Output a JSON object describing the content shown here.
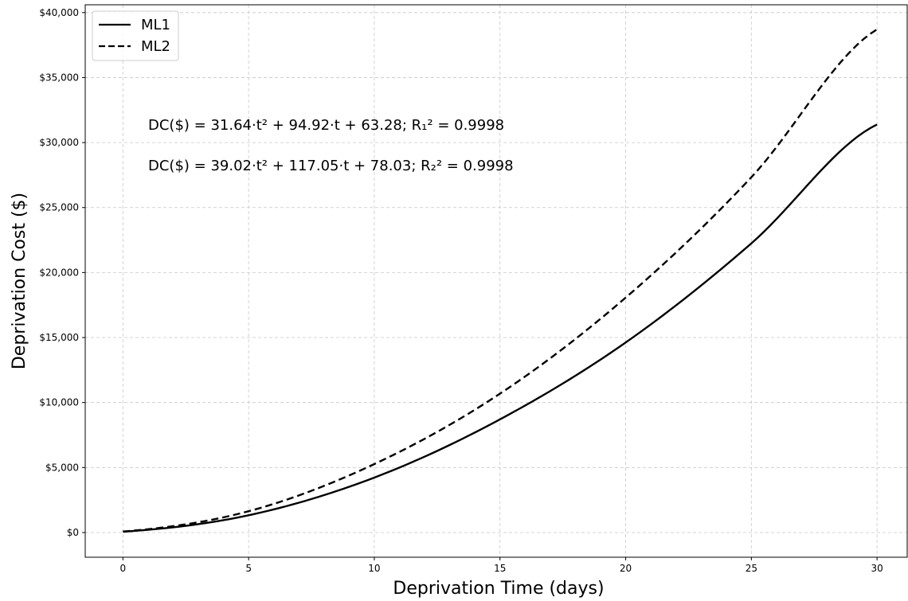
{
  "chart_data": {
    "type": "line",
    "xlabel": "Deprivation Time (days)",
    "ylabel": "Deprivation Cost ($)",
    "xlim": [
      -1.5,
      31.2
    ],
    "ylim": [
      -1900,
      40600
    ],
    "xticks": [
      0,
      5,
      10,
      15,
      20,
      25,
      30
    ],
    "yticks": [
      0,
      5000,
      10000,
      15000,
      20000,
      25000,
      30000,
      35000,
      40000
    ],
    "ytick_labels": [
      "$0",
      "$5,000",
      "$10,000",
      "$15,000",
      "$20,000",
      "$25,000",
      "$30,000",
      "$35,000",
      "$40,000"
    ],
    "grid": true,
    "legend_position": "top-left",
    "series": [
      {
        "name": "ML1",
        "style": "solid",
        "color": "#000000",
        "x": [
          0,
          5,
          10,
          15,
          20,
          25,
          30
        ],
        "values": [
          63.28,
          1329,
          4226,
          8705,
          14619,
          22243,
          31387
        ]
      },
      {
        "name": "ML2",
        "style": "dashed",
        "color": "#000000",
        "x": [
          0,
          5,
          10,
          15,
          20,
          25,
          30
        ],
        "values": [
          78.03,
          1639,
          5265,
          10683,
          18070,
          27332,
          38706
        ]
      }
    ],
    "annotations": [
      "DC($) = 31.64·t² + 94.92·t + 63.28;   R₁² = 0.9998",
      "DC($) = 39.02·t² + 117.05·t + 78.03;   R₂² = 0.9998"
    ]
  }
}
